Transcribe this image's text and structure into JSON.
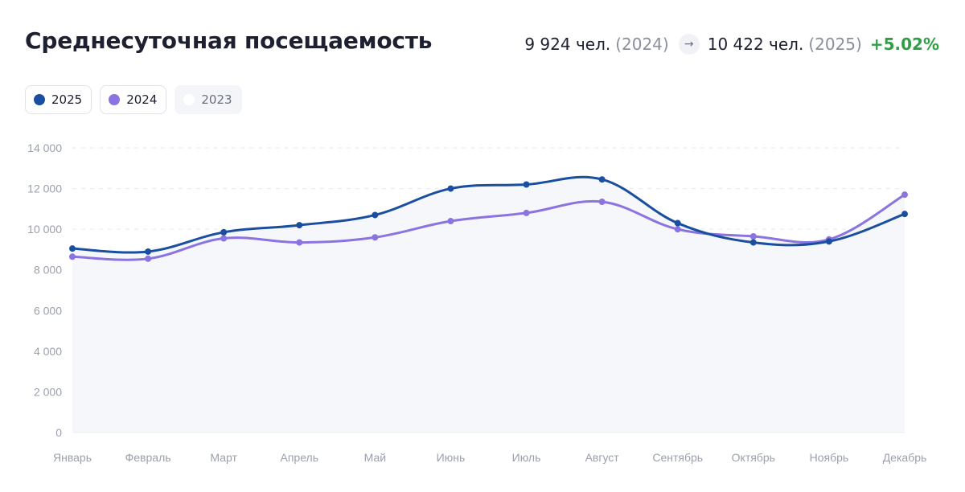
{
  "header": {
    "title": "Среднесуточная посещаемость",
    "prev_value": "9 924 чел.",
    "prev_year": "(2024)",
    "arrow": "→",
    "curr_value": "10 422 чел.",
    "curr_year": "(2025)",
    "change": "+5.02%"
  },
  "legend": [
    {
      "label": "2025",
      "color": "#1a4fa0",
      "active": true
    },
    {
      "label": "2024",
      "color": "#8b73e0",
      "active": true
    },
    {
      "label": "2023",
      "color": "#ffffff",
      "active": false
    }
  ],
  "chart_data": {
    "type": "line",
    "categories": [
      "Январь",
      "Февраль",
      "Март",
      "Апрель",
      "Май",
      "Июнь",
      "Июль",
      "Август",
      "Сентябрь",
      "Октябрь",
      "Ноябрь",
      "Декабрь"
    ],
    "series": [
      {
        "name": "2025",
        "color": "#1a4fa0",
        "values": [
          9050,
          8900,
          9850,
          10200,
          10700,
          12000,
          12200,
          12450,
          10300,
          9350,
          9400,
          10750
        ]
      },
      {
        "name": "2024",
        "color": "#8b73e0",
        "values": [
          8650,
          8550,
          9550,
          9350,
          9600,
          10400,
          10800,
          11350,
          10000,
          9650,
          9500,
          11700
        ]
      }
    ],
    "ylim": [
      0,
      14000
    ],
    "yticks": [
      0,
      2000,
      4000,
      6000,
      8000,
      10000,
      12000,
      14000
    ],
    "ytick_labels": [
      "0",
      "2 000",
      "4 000",
      "6 000",
      "8 000",
      "10 000",
      "12 000",
      "14 000"
    ],
    "grid": true,
    "fill_color": "#f6f7fb"
  }
}
